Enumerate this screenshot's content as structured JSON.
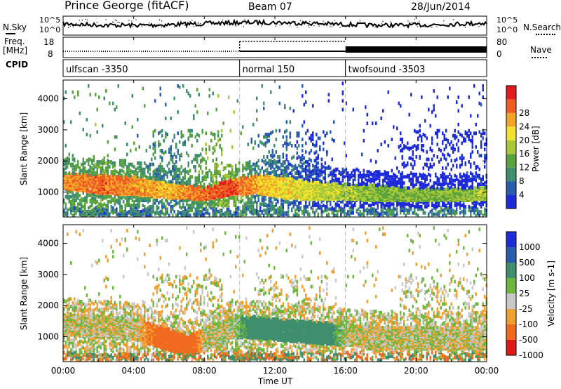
{
  "header": {
    "station": "Prince George (fitACF)",
    "beam": "Beam 07",
    "date": "28/Jun/2014"
  },
  "side_labels": {
    "nsky": "N.Sky",
    "freq": "Freq.",
    "mhz": "[MHz]",
    "cpid": "CPID",
    "nsearch": "N.Search",
    "nave": "Nave"
  },
  "strip_ticks": {
    "nsky_top": "10^5",
    "nsky_bottom": "10^0",
    "nsearch_top": "10^5",
    "nsearch_bottom": "10^0",
    "freq_top": "18",
    "freq_bottom": "8",
    "nave_top": "80",
    "nave_bottom": "0"
  },
  "cpid_segments": [
    {
      "label": "ulfscan -3350",
      "start_hour": 0,
      "end_hour": 10
    },
    {
      "label": "normal 150",
      "start_hour": 10,
      "end_hour": 16
    },
    {
      "label": "twofsound -3503",
      "start_hour": 16,
      "end_hour": 24
    }
  ],
  "chart_data": [
    {
      "type": "heatmap",
      "panel": "power",
      "xlabel": "",
      "ylabel": "Slant Range [km]",
      "xlim": [
        0,
        24
      ],
      "ylim": [
        200,
        4600
      ],
      "yticks": [
        1000,
        2000,
        3000,
        4000
      ],
      "colorbar": {
        "label": "Power [dB]",
        "ticks": [
          "4",
          "8",
          "12",
          "16",
          "20",
          "24",
          "28"
        ],
        "colors": [
          "#1e2bd8",
          "#2a5cae",
          "#3f8f6e",
          "#5aa23c",
          "#a8c83a",
          "#f2e22e",
          "#f3a52a",
          "#ef5d24",
          "#e21c1c"
        ]
      },
      "bands": [
        {
          "t": [
            0,
            2,
            4,
            6,
            8,
            9.5,
            11,
            12.5,
            14,
            16,
            18,
            20,
            22,
            24
          ],
          "center": [
            1350,
            1250,
            1200,
            1050,
            950,
            1150,
            1250,
            1150,
            1050,
            1000,
            950,
            900,
            900,
            950
          ],
          "half_width": [
            250,
            300,
            300,
            250,
            200,
            250,
            300,
            350,
            300,
            250,
            250,
            200,
            200,
            200
          ],
          "level": [
            24,
            26,
            24,
            22,
            26,
            28,
            22,
            20,
            18,
            16,
            14,
            14,
            14,
            16
          ]
        }
      ]
    },
    {
      "type": "heatmap",
      "panel": "velocity",
      "xlabel": "Time UT",
      "ylabel": "Slant Range [km]",
      "xlim": [
        0,
        24
      ],
      "ylim": [
        200,
        4600
      ],
      "yticks": [
        1000,
        2000,
        3000,
        4000
      ],
      "xticks": [
        "00:00",
        "04:00",
        "08:00",
        "12:00",
        "16:00",
        "20:00",
        "00:00"
      ],
      "colorbar": {
        "label": "Velocity [m s-1]",
        "ticks": [
          "1000",
          "500",
          "100",
          "25",
          "-25",
          "-100",
          "-500",
          "-1000"
        ],
        "colors": [
          "#1e2bd8",
          "#2a5cae",
          "#3f8f6e",
          "#6db63f",
          "#c8c8c8",
          "#f0a030",
          "#f06a20",
          "#e01818"
        ]
      },
      "bands": [
        {
          "t": [
            0,
            2,
            4,
            6,
            7,
            8,
            9.5,
            11,
            12.5,
            14,
            16,
            18,
            20,
            22,
            24
          ],
          "center": [
            1400,
            1300,
            1250,
            900,
            700,
            900,
            1300,
            1300,
            1200,
            1150,
            1050,
            950,
            950,
            950,
            950
          ],
          "velocity": [
            0,
            0,
            0,
            -150,
            -150,
            0,
            0,
            150,
            200,
            250,
            0,
            0,
            0,
            0,
            0
          ]
        }
      ]
    }
  ]
}
